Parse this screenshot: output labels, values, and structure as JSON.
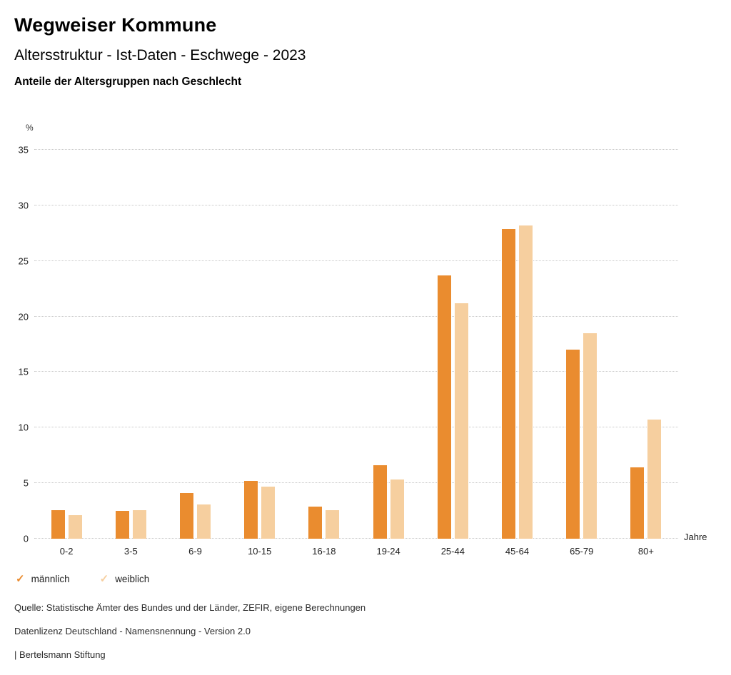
{
  "header": {
    "title": "Wegweiser Kommune",
    "subtitle": "Altersstruktur - Ist-Daten - Eschwege - 2023",
    "heading": "Anteile der Altersgruppen nach Geschlecht"
  },
  "chart_data": {
    "type": "bar",
    "title": "Anteile der Altersgruppen nach Geschlecht",
    "categories": [
      "0-2",
      "3-5",
      "6-9",
      "10-15",
      "16-18",
      "19-24",
      "25-44",
      "45-64",
      "65-79",
      "80+"
    ],
    "series": [
      {
        "name": "männlich",
        "color": "#EA8C2F",
        "values": [
          2.6,
          2.5,
          4.1,
          5.2,
          2.9,
          6.6,
          23.7,
          27.9,
          17.0,
          6.4
        ]
      },
      {
        "name": "weiblich",
        "color": "#F6CF9F",
        "values": [
          2.1,
          2.6,
          3.1,
          4.7,
          2.6,
          5.3,
          21.2,
          28.2,
          18.5,
          10.7
        ]
      }
    ],
    "ylabel": "%",
    "xlabel": "Jahre",
    "ylim": [
      0,
      35
    ],
    "yticks": [
      0,
      5,
      10,
      15,
      20,
      25,
      30,
      35
    ],
    "grid": true,
    "legend_position": "bottom",
    "legend_check_glyph": "✓"
  },
  "footer": {
    "lines": [
      "Quelle: Statistische Ämter des Bundes und der Länder, ZEFIR, eigene Berechnungen",
      "Datenlizenz Deutschland - Namensnennung - Version 2.0",
      "| Bertelsmann Stiftung"
    ]
  }
}
